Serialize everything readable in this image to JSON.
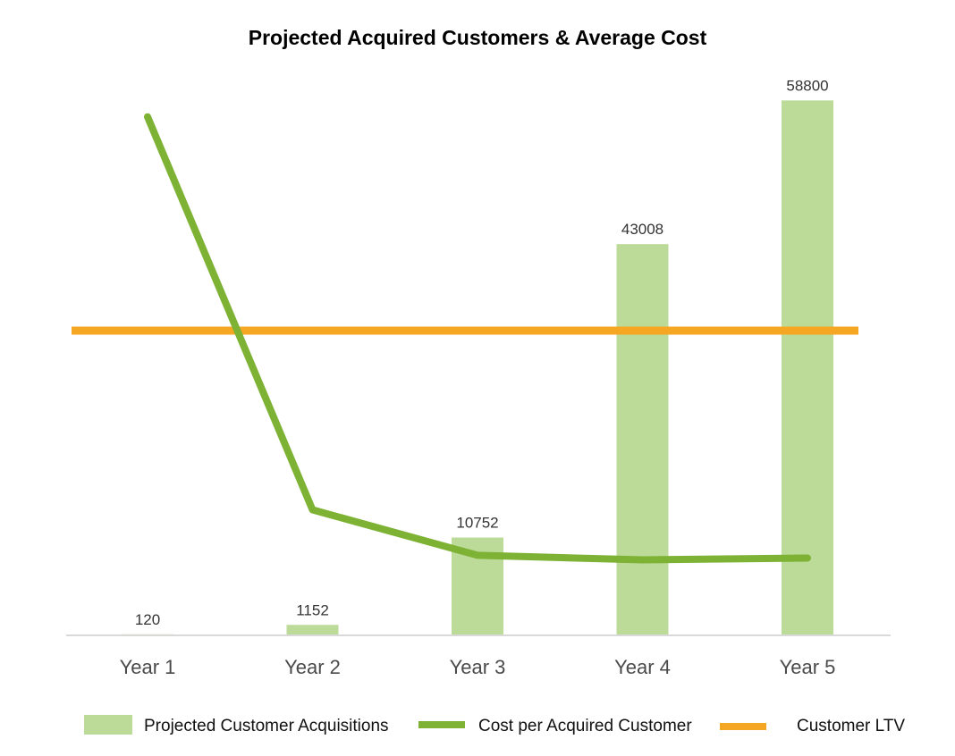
{
  "chart_data": {
    "type": "bar",
    "title": "Projected Acquired Customers & Average Cost",
    "categories": [
      "Year 1",
      "Year 2",
      "Year 3",
      "Year 4",
      "Year 5"
    ],
    "series": [
      {
        "name": "Projected Customer Acquisitions",
        "type": "bar",
        "values": [
          120,
          1152,
          10752,
          43008,
          58800
        ],
        "data_labels": [
          "120",
          "1152",
          "10752",
          "43008",
          "58800"
        ],
        "color": "#bcdb98"
      },
      {
        "name": "Cost per Acquired Customer",
        "type": "line",
        "values": [
          57000,
          13800,
          8800,
          8300,
          8500
        ],
        "color": "#7db234"
      },
      {
        "name": "Customer LTV",
        "type": "line",
        "values": [
          33500,
          33500,
          33500,
          33500,
          33500
        ],
        "color": "#f5a623"
      }
    ],
    "ylim": [
      0,
      61000
    ],
    "grid": false,
    "y_axis_visible": false,
    "legend_position": "bottom",
    "axis_color": "#d9d9d9"
  }
}
